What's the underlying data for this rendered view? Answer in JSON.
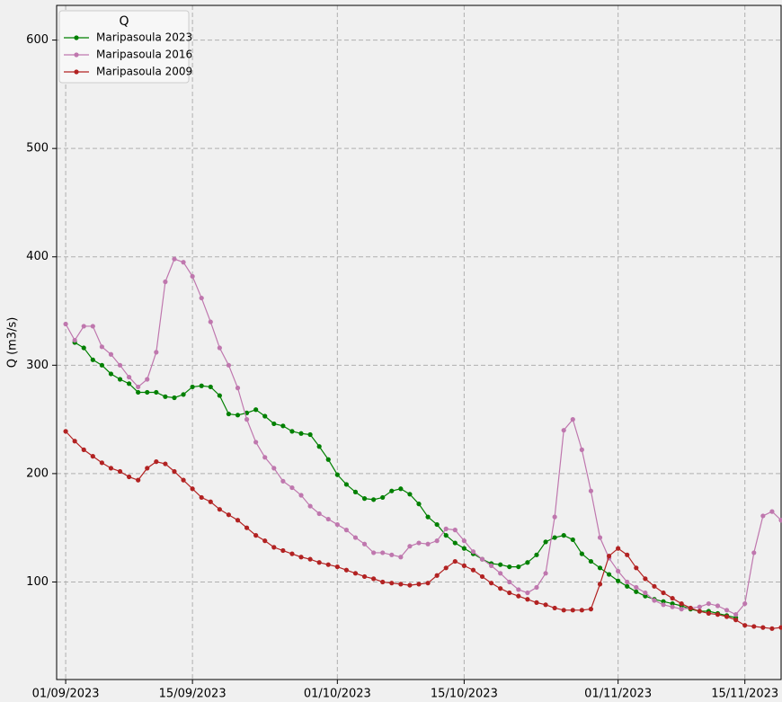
{
  "chart_data": {
    "type": "line",
    "ylabel": "Q (m3/s)",
    "legend_title": "Q",
    "legend": "upper left",
    "grid": true,
    "xlim": [
      "2023-08-31",
      "2023-11-19"
    ],
    "ylim": [
      10,
      632
    ],
    "yticks": [
      100,
      200,
      300,
      400,
      500,
      600
    ],
    "xticks": [
      {
        "value": "2023-09-01",
        "label": "01/09/2023"
      },
      {
        "value": "2023-09-15",
        "label": "15/09/2023"
      },
      {
        "value": "2023-10-01",
        "label": "01/10/2023"
      },
      {
        "value": "2023-10-15",
        "label": "15/10/2023"
      },
      {
        "value": "2023-11-01",
        "label": "01/11/2023"
      },
      {
        "value": "2023-11-15",
        "label": "15/11/2023"
      }
    ],
    "x": [
      "2023-09-01",
      "2023-09-02",
      "2023-09-03",
      "2023-09-04",
      "2023-09-05",
      "2023-09-06",
      "2023-09-07",
      "2023-09-08",
      "2023-09-09",
      "2023-09-10",
      "2023-09-11",
      "2023-09-12",
      "2023-09-13",
      "2023-09-14",
      "2023-09-15",
      "2023-09-16",
      "2023-09-17",
      "2023-09-18",
      "2023-09-19",
      "2023-09-20",
      "2023-09-21",
      "2023-09-22",
      "2023-09-23",
      "2023-09-24",
      "2023-09-25",
      "2023-09-26",
      "2023-09-27",
      "2023-09-28",
      "2023-09-29",
      "2023-09-30",
      "2023-10-01",
      "2023-10-02",
      "2023-10-03",
      "2023-10-04",
      "2023-10-05",
      "2023-10-06",
      "2023-10-07",
      "2023-10-08",
      "2023-10-09",
      "2023-10-10",
      "2023-10-11",
      "2023-10-12",
      "2023-10-13",
      "2023-10-14",
      "2023-10-15",
      "2023-10-16",
      "2023-10-17",
      "2023-10-18",
      "2023-10-19",
      "2023-10-20",
      "2023-10-21",
      "2023-10-22",
      "2023-10-23",
      "2023-10-24",
      "2023-10-25",
      "2023-10-26",
      "2023-10-27",
      "2023-10-28",
      "2023-10-29",
      "2023-10-30",
      "2023-10-31",
      "2023-11-01",
      "2023-11-02",
      "2023-11-03",
      "2023-11-04",
      "2023-11-05",
      "2023-11-06",
      "2023-11-07",
      "2023-11-08",
      "2023-11-09",
      "2023-11-10",
      "2023-11-11",
      "2023-11-12",
      "2023-11-13",
      "2023-11-14",
      "2023-11-15",
      "2023-11-16",
      "2023-11-17",
      "2023-11-18",
      "2023-11-19"
    ],
    "series": [
      {
        "name": "Maripasoula 2023",
        "color": "#008000",
        "values": [
          null,
          321,
          316,
          305,
          300,
          292,
          287,
          283,
          275,
          275,
          275,
          271,
          270,
          273,
          280,
          281,
          280,
          272,
          255,
          254,
          256,
          259,
          253,
          246,
          244,
          239,
          237,
          236,
          225,
          213,
          199,
          190,
          183,
          177,
          176,
          178,
          184,
          186,
          181,
          172,
          160,
          153,
          143,
          136,
          131,
          126,
          121,
          117,
          116,
          114,
          114,
          118,
          125,
          137,
          141,
          143,
          139,
          126,
          119,
          113,
          107,
          101,
          96,
          91,
          87,
          84,
          82,
          80,
          78,
          75,
          73,
          73,
          71,
          69,
          67,
          null,
          null,
          null,
          null,
          null
        ]
      },
      {
        "name": "Maripasoula 2016",
        "color": "#bf77ae",
        "values": [
          338,
          323,
          336,
          336,
          317,
          310,
          300,
          289,
          280,
          287,
          312,
          377,
          398,
          395,
          382,
          362,
          340,
          316,
          300,
          279,
          250,
          229,
          215,
          205,
          193,
          187,
          180,
          170,
          163,
          158,
          153,
          148,
          141,
          135,
          127,
          127,
          125,
          123,
          133,
          136,
          135,
          138,
          149,
          148,
          138,
          128,
          121,
          115,
          108,
          100,
          93,
          90,
          95,
          108,
          160,
          240,
          250,
          222,
          184,
          141,
          122,
          110,
          100,
          95,
          90,
          83,
          79,
          77,
          75,
          76,
          77,
          80,
          78,
          74,
          70,
          80,
          127,
          161,
          165,
          157
        ]
      },
      {
        "name": "Maripasoula 2009",
        "color": "#b22222",
        "values": [
          239,
          230,
          222,
          216,
          210,
          205,
          202,
          197,
          194,
          205,
          211,
          209,
          202,
          194,
          186,
          178,
          174,
          167,
          162,
          157,
          150,
          143,
          138,
          132,
          129,
          126,
          123,
          121,
          118,
          116,
          114,
          111,
          108,
          105,
          103,
          100,
          99,
          98,
          97,
          98,
          99,
          106,
          113,
          119,
          115,
          111,
          105,
          99,
          94,
          90,
          87,
          84,
          81,
          79,
          76,
          74,
          74,
          74,
          75,
          98,
          124,
          131,
          125,
          113,
          103,
          96,
          90,
          85,
          80,
          76,
          73,
          71,
          70,
          68,
          65,
          60,
          59,
          58,
          57,
          58
        ]
      }
    ]
  }
}
